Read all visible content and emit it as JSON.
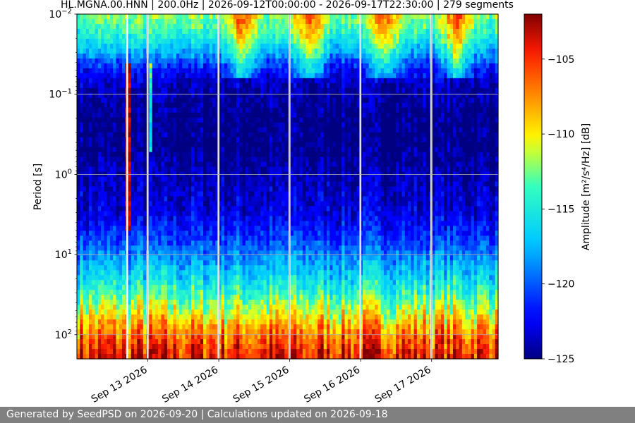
{
  "chart_data": {
    "type": "heatmap",
    "title": "HL.MGNA.00.HNN | 200.0Hz | 2026-09-12T00:00:00 - 2026-09-17T22:30:00 | 279 segments",
    "x": {
      "start": "2026-09-12T00:00:00",
      "end": "2026-09-17T22:30:00",
      "tick_labels": [
        "Sep 13 2026",
        "Sep 14 2026",
        "Sep 15 2026",
        "Sep 16 2026",
        "Sep 17 2026"
      ],
      "tick_dates": [
        "2026-09-13",
        "2026-09-14",
        "2026-09-15",
        "2026-09-16",
        "2026-09-17"
      ]
    },
    "y": {
      "label": "Period [s]",
      "scale": "log",
      "inverted": true,
      "range": [
        0.01,
        200
      ],
      "ticks": [
        0.01,
        0.1,
        1,
        10,
        100
      ]
    },
    "colorbar": {
      "label": "Amplitude [m²/s⁴/Hz] [dB]",
      "colormap": "jet",
      "range": [
        -125,
        -102
      ],
      "ticks": [
        -105,
        -110,
        -115,
        -120,
        -125
      ]
    },
    "grid": true,
    "gaps": [
      "2026-09-12T17:00:00",
      "2026-09-12T23:55:00",
      "2026-09-13T23:55:00",
      "2026-09-14T23:55:00",
      "2026-09-15T23:55:00",
      "2026-09-16T23:55:00"
    ],
    "profile": {
      "period_s": [
        0.01,
        0.02,
        0.03,
        0.05,
        0.08,
        0.2,
        0.5,
        1,
        3,
        6,
        10,
        20,
        30,
        50,
        80,
        120,
        200
      ],
      "amplitude_db": [
        -112,
        -115,
        -118,
        -122,
        -124,
        -125,
        -125,
        -124,
        -123,
        -121,
        -119,
        -116,
        -114,
        -111,
        -108,
        -106,
        -104
      ]
    }
  },
  "footer": {
    "text": "Generated by SeedPSD on 2026-09-20 | Calculations updated on 2026-09-18"
  }
}
